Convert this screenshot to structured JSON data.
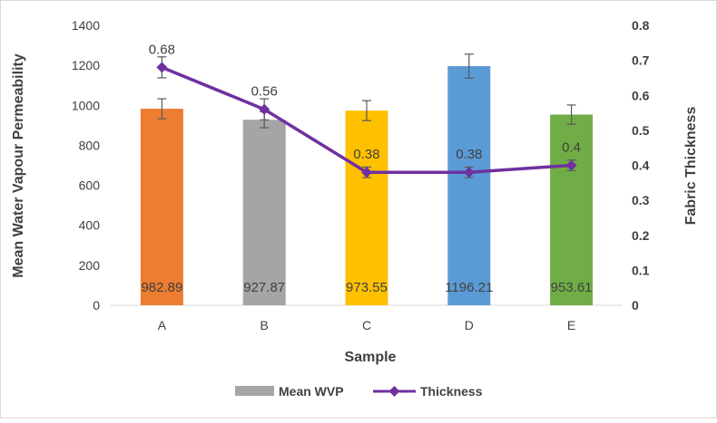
{
  "chart_data": {
    "type": "bar",
    "categories": [
      "A",
      "B",
      "C",
      "D",
      "E"
    ],
    "xlabel": "Sample",
    "ylabel": "Mean Water Vapour Permeability",
    "y2label": "Fabric Thickness",
    "ylim": [
      0,
      1400
    ],
    "y_ticks": [
      0,
      200,
      400,
      600,
      800,
      1000,
      1200,
      1400
    ],
    "y2lim": [
      0,
      0.8
    ],
    "y2_ticks": [
      "0",
      "0.1",
      "0.2",
      "0.3",
      "0.4",
      "0.5",
      "0.6",
      "0.7",
      "0.8"
    ],
    "grid": false,
    "legend_position": "bottom",
    "series": [
      {
        "name": "Mean WVP",
        "type": "bar",
        "axis": "left",
        "values": [
          982.89,
          927.87,
          973.55,
          1196.21,
          953.61
        ],
        "labels": [
          "982.89",
          "927.87",
          "973.55",
          "1196.21",
          "953.61"
        ],
        "error": [
          50,
          40,
          50,
          60,
          48
        ],
        "legend_color": "#a5a5a5",
        "bar_colors": [
          "#ed7d31",
          "#a5a5a5",
          "#ffc000",
          "#5b9bd5",
          "#70ad47"
        ]
      },
      {
        "name": "Thickness",
        "type": "line",
        "axis": "right",
        "values": [
          0.68,
          0.56,
          0.38,
          0.38,
          0.4
        ],
        "labels": [
          "0.68",
          "0.56",
          "0.38",
          "0.38",
          "0.4"
        ],
        "error": [
          0.03,
          0.03,
          0.015,
          0.015,
          0.015
        ],
        "color": "#7030a0"
      }
    ]
  }
}
